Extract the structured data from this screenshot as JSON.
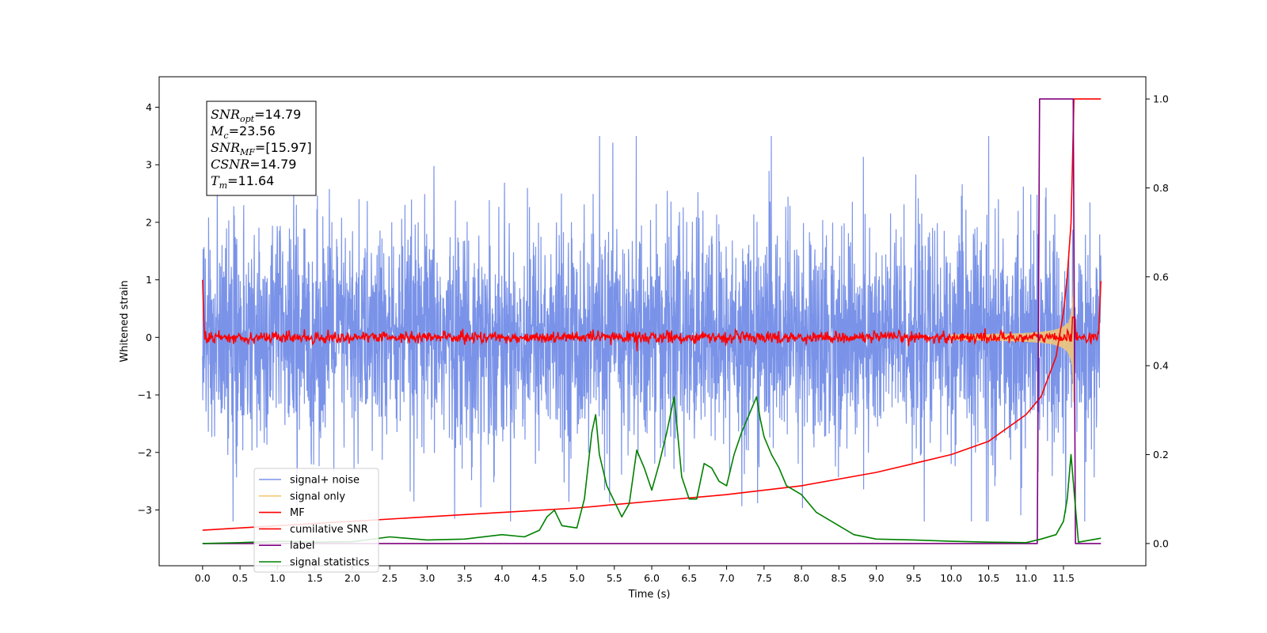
{
  "chart_data": {
    "type": "line",
    "title": "",
    "xlabel": "Time (s)",
    "ylabel_left": "Whitened strain",
    "ylabel_right": "",
    "xlim": [
      -0.58,
      12.6
    ],
    "ylim_left": [
      -3.97,
      4.53
    ],
    "ylim_right": [
      -0.05,
      1.05
    ],
    "x_ticks": [
      "0.0",
      "0.5",
      "1.0",
      "1.5",
      "2.0",
      "2.5",
      "3.0",
      "3.5",
      "4.0",
      "4.5",
      "5.0",
      "5.5",
      "6.0",
      "6.5",
      "7.0",
      "7.5",
      "8.0",
      "8.5",
      "9.0",
      "9.5",
      "10.0",
      "10.5",
      "11.0",
      "11.5"
    ],
    "y_ticks_left": [
      "4",
      "3",
      "2",
      "1",
      "0",
      "−1",
      "−2",
      "−3"
    ],
    "y_ticks_right": [
      "1.0",
      "0.8",
      "0.6",
      "0.4",
      "0.2",
      "0.0"
    ],
    "grid": false,
    "legend_location": "lower-left",
    "annotation": [
      {
        "sym": "SNR",
        "sub": "opt",
        "val": "=14.79"
      },
      {
        "sym": "M",
        "sub": "c",
        "val": "=23.56"
      },
      {
        "sym": "SNR",
        "sub": "MF",
        "val": "=[15.97]"
      },
      {
        "sym": "CSNR",
        "sub": "",
        "val": "=14.79"
      },
      {
        "sym": "T",
        "sub": "m",
        "val": "=11.64"
      }
    ],
    "series": [
      {
        "name": "signal+ noise",
        "color": "#7a93e8",
        "axis": "left",
        "description": "whitened noise plus signal, roughly ±1.5 with spikes up to ~3.5, over 0–12 s"
      },
      {
        "name": "signal only",
        "color": "#f5c874",
        "axis": "left",
        "description": "chirp waveform growing toward ~11.6 s, amplitude up to ~1.6"
      },
      {
        "name": "MF",
        "color": "#ff0000",
        "axis": "left",
        "description": "matched-filter output near 0, spike near 11.6 s"
      },
      {
        "name": "cumilative SNR",
        "color": "#ff0000",
        "axis": "right",
        "x": [
          0.0,
          1.0,
          2.0,
          3.0,
          4.0,
          5.0,
          6.0,
          7.0,
          8.0,
          9.0,
          9.5,
          10.0,
          10.5,
          11.0,
          11.2,
          11.4,
          11.5,
          11.55,
          11.6,
          11.62,
          11.64,
          12.0
        ],
        "y": [
          0.03,
          0.04,
          0.05,
          0.06,
          0.07,
          0.08,
          0.095,
          0.11,
          0.13,
          0.16,
          0.18,
          0.2,
          0.23,
          0.29,
          0.33,
          0.42,
          0.52,
          0.6,
          0.72,
          0.86,
          1.0,
          1.0
        ]
      },
      {
        "name": "label",
        "color": "#800080",
        "axis": "right",
        "x": [
          0.0,
          11.15,
          11.18,
          11.6,
          11.63,
          11.66,
          12.0
        ],
        "y": [
          0.0,
          0.0,
          1.0,
          1.0,
          1.0,
          0.0,
          0.0
        ]
      },
      {
        "name": "signal statistics",
        "color": "#008000",
        "axis": "right",
        "x": [
          0.0,
          0.5,
          1.0,
          1.5,
          2.0,
          2.5,
          3.0,
          3.5,
          4.0,
          4.3,
          4.5,
          4.6,
          4.7,
          4.8,
          5.0,
          5.1,
          5.2,
          5.25,
          5.3,
          5.4,
          5.6,
          5.7,
          5.8,
          5.9,
          6.0,
          6.1,
          6.2,
          6.3,
          6.4,
          6.5,
          6.6,
          6.7,
          6.8,
          6.9,
          7.0,
          7.1,
          7.2,
          7.3,
          7.4,
          7.45,
          7.5,
          7.6,
          7.7,
          7.8,
          8.0,
          8.2,
          8.5,
          8.7,
          9.0,
          9.5,
          10.0,
          10.5,
          11.0,
          11.2,
          11.4,
          11.5,
          11.55,
          11.6,
          11.65,
          11.7,
          12.0
        ],
        "y": [
          0.0,
          0.002,
          0.005,
          0.003,
          0.004,
          0.015,
          0.008,
          0.01,
          0.02,
          0.015,
          0.03,
          0.06,
          0.075,
          0.04,
          0.035,
          0.1,
          0.25,
          0.29,
          0.2,
          0.13,
          0.06,
          0.09,
          0.21,
          0.17,
          0.12,
          0.18,
          0.25,
          0.33,
          0.15,
          0.1,
          0.1,
          0.18,
          0.17,
          0.14,
          0.13,
          0.2,
          0.25,
          0.29,
          0.33,
          0.28,
          0.24,
          0.2,
          0.17,
          0.13,
          0.11,
          0.07,
          0.04,
          0.02,
          0.01,
          0.008,
          0.005,
          0.003,
          0.002,
          0.01,
          0.02,
          0.05,
          0.1,
          0.2,
          0.1,
          0.003,
          0.012
        ]
      }
    ]
  }
}
